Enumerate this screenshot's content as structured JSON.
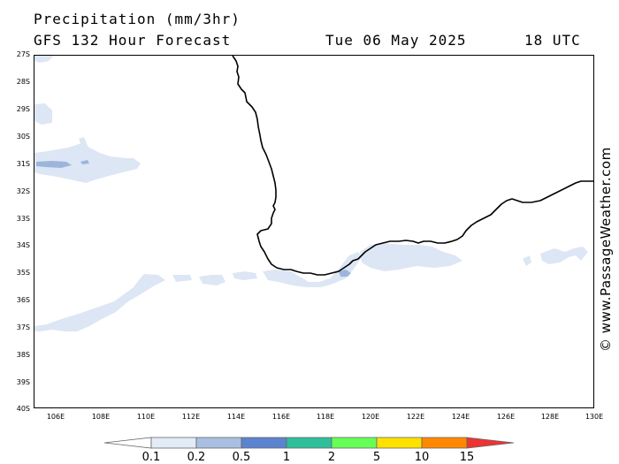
{
  "header": {
    "title": "Precipitation (mm/3hr)",
    "subtitle": "GFS 132 Hour Forecast",
    "date": "Tue 06 May 2025",
    "time": "18 UTC"
  },
  "map": {
    "region": "South-west Western Australia",
    "lat_labels": [
      "27S",
      "28S",
      "29S",
      "30S",
      "31S",
      "32S",
      "33S",
      "34S",
      "35S",
      "36S",
      "37S",
      "38S",
      "39S",
      "40S"
    ],
    "lon_labels": [
      "106E",
      "108E",
      "110E",
      "112E",
      "114E",
      "116E",
      "118E",
      "120E",
      "122E",
      "124E",
      "126E",
      "128E",
      "130E"
    ],
    "lat_range": [
      -27,
      -40
    ],
    "lon_range": [
      105,
      130
    ],
    "coastline_color": "#000000",
    "precip_colors": {
      "light": "#dde6f4",
      "medium": "#9db5dc"
    }
  },
  "credit": "© www.PassageWeather.com",
  "legend": {
    "labels": [
      "0.1",
      "0.2",
      "0.5",
      "1",
      "2",
      "5",
      "10",
      "15"
    ],
    "colors": [
      "#ffffff",
      "#e3ebf6",
      "#a8bfe2",
      "#5b83cf",
      "#2fbf9a",
      "#66ff55",
      "#ffe100",
      "#ff8800",
      "#ee3333"
    ]
  }
}
